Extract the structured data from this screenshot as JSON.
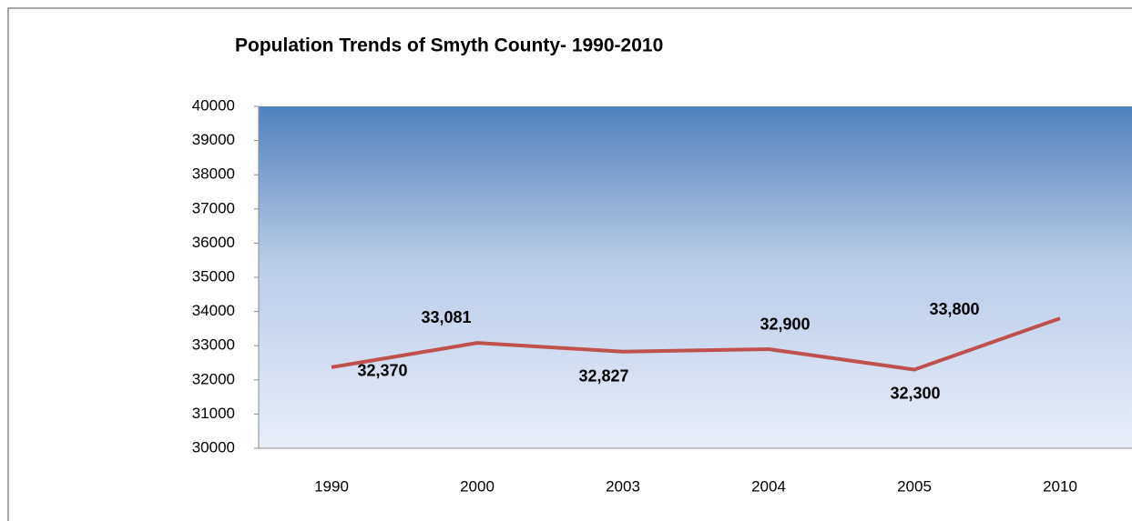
{
  "chart_data": {
    "type": "line",
    "title": "Population Trends of Smyth County- 1990-2010",
    "categories": [
      "1990",
      "2000",
      "2003",
      "2004",
      "2005",
      "2010"
    ],
    "series": [
      {
        "name": "Population",
        "color": "#c0504d",
        "values": [
          32370,
          33081,
          32827,
          32900,
          32300,
          33800
        ],
        "value_labels": [
          "32,370",
          "33,081",
          "32,827",
          "32,900",
          "32,300",
          "33,800"
        ]
      }
    ],
    "ylim": [
      30000,
      40000
    ],
    "yticks": [
      30000,
      31000,
      32000,
      33000,
      34000,
      35000,
      36000,
      37000,
      38000,
      39000,
      40000
    ]
  }
}
